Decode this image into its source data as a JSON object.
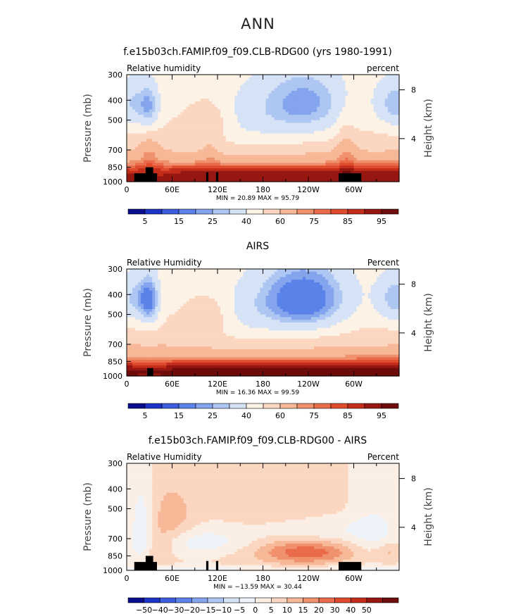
{
  "figure": {
    "title": "ANN"
  },
  "palettes": {
    "abs": [
      "#0a0e8c",
      "#1d33c8",
      "#3c5ddd",
      "#5b82e8",
      "#84a5ee",
      "#adc6f2",
      "#d6e3f6",
      "#fdf2e6",
      "#fbd6c0",
      "#f7b898",
      "#f0916d",
      "#ea6b4a",
      "#df4b2d",
      "#c22e1b",
      "#961611",
      "#6e0b0b"
    ],
    "diff": [
      "#0a0e8c",
      "#1d33c8",
      "#3c5ddd",
      "#5b82e8",
      "#84a5ee",
      "#adc6f2",
      "#d6e3f6",
      "#eef2f9",
      "#fbeee4",
      "#fbd6c0",
      "#f7b898",
      "#f0916d",
      "#ea6b4a",
      "#df4b2d",
      "#c22e1b",
      "#961611",
      "#6e0b0b"
    ]
  },
  "chart_data": [
    {
      "type": "heatmap",
      "title": "f.e15b03ch.FAMIP.f09_f09.CLB-RDG00 (yrs 1980-1991)",
      "left_label": "Relative humidity",
      "right_label": "percent",
      "ylabel": "Pressure (mb)",
      "ylabel_right": "Height (km)",
      "x_ticks": [
        "0",
        "60E",
        "120E",
        "180",
        "120W",
        "60W"
      ],
      "x_tick_values": [
        0,
        60,
        120,
        180,
        240,
        300
      ],
      "xlim": [
        0,
        360
      ],
      "y_ticks": [
        "300",
        "400",
        "500",
        "700",
        "850",
        "1000"
      ],
      "y_tick_values": [
        300,
        400,
        500,
        700,
        850,
        1000
      ],
      "ylim": [
        1000,
        300
      ],
      "y_log": true,
      "right_ticks": [
        "8",
        "4"
      ],
      "right_tick_pressures": [
        356,
        616
      ],
      "stats": "MIN =   20.89   MAX =   95.79",
      "colorbar_labels": [
        "5",
        "15",
        "25",
        "40",
        "60",
        "75",
        "85",
        "95"
      ],
      "colorbar_levels": [
        0,
        5,
        10,
        15,
        20,
        25,
        30,
        40,
        50,
        60,
        70,
        75,
        80,
        85,
        90,
        95,
        100
      ],
      "palette": "abs",
      "field": "model",
      "min": 20.89,
      "max": 95.79,
      "terrain": [
        [
          10,
          40,
          910
        ],
        [
          25,
          35,
          850
        ],
        [
          105,
          108,
          900
        ],
        [
          118,
          121,
          900
        ],
        [
          280,
          310,
          910
        ]
      ]
    },
    {
      "type": "heatmap",
      "title": "AIRS",
      "left_label": "Relative Humidity",
      "right_label": "Percent",
      "ylabel": "Pressure (mb)",
      "ylabel_right": "Height (km)",
      "x_ticks": [
        "0",
        "60E",
        "120E",
        "180",
        "120W",
        "60W"
      ],
      "x_tick_values": [
        0,
        60,
        120,
        180,
        240,
        300
      ],
      "xlim": [
        0,
        360
      ],
      "y_ticks": [
        "300",
        "400",
        "500",
        "700",
        "850",
        "1000"
      ],
      "y_tick_values": [
        300,
        400,
        500,
        700,
        850,
        1000
      ],
      "ylim": [
        1000,
        300
      ],
      "y_log": true,
      "right_ticks": [
        "8",
        "4"
      ],
      "right_tick_pressures": [
        356,
        616
      ],
      "stats": "MIN =   16.36   MAX =   99.59",
      "colorbar_labels": [
        "5",
        "15",
        "25",
        "40",
        "60",
        "75",
        "85",
        "95"
      ],
      "colorbar_levels": [
        0,
        5,
        10,
        15,
        20,
        25,
        30,
        40,
        50,
        60,
        70,
        75,
        80,
        85,
        90,
        95,
        100
      ],
      "palette": "abs",
      "field": "obs",
      "min": 16.36,
      "max": 99.59,
      "terrain": [
        [
          27,
          35,
          915
        ]
      ]
    },
    {
      "type": "heatmap",
      "title": "f.e15b03ch.FAMIP.f09_f09.CLB-RDG00 - AIRS",
      "left_label": "Relative Humidity",
      "right_label": "Percent",
      "ylabel": "Pressure (mb)",
      "ylabel_right": "Height (km)",
      "x_ticks": [
        "0",
        "60E",
        "120E",
        "180",
        "120W",
        "60W"
      ],
      "x_tick_values": [
        0,
        60,
        120,
        180,
        240,
        300
      ],
      "xlim": [
        0,
        360
      ],
      "y_ticks": [
        "300",
        "400",
        "500",
        "700",
        "850",
        "1000"
      ],
      "y_tick_values": [
        300,
        400,
        500,
        700,
        850,
        1000
      ],
      "ylim": [
        1000,
        300
      ],
      "y_log": true,
      "right_ticks": [
        "8",
        "4"
      ],
      "right_tick_pressures": [
        356,
        616
      ],
      "stats": "MIN =  −13.59   MAX =   30.44",
      "colorbar_labels": [
        "−50",
        "−40",
        "−30",
        "−20",
        "−15",
        "−10",
        "−5",
        "0",
        "5",
        "10",
        "15",
        "20",
        "30",
        "40",
        "50"
      ],
      "colorbar_levels": [
        -60,
        -50,
        -40,
        -30,
        -20,
        -15,
        -10,
        -5,
        0,
        5,
        10,
        15,
        20,
        30,
        40,
        50,
        60
      ],
      "palette": "diff",
      "field": "diff",
      "min": -13.59,
      "max": 30.44,
      "terrain": [
        [
          10,
          40,
          910
        ],
        [
          25,
          35,
          850
        ],
        [
          105,
          108,
          900
        ],
        [
          118,
          121,
          900
        ],
        [
          280,
          310,
          910
        ]
      ]
    }
  ]
}
